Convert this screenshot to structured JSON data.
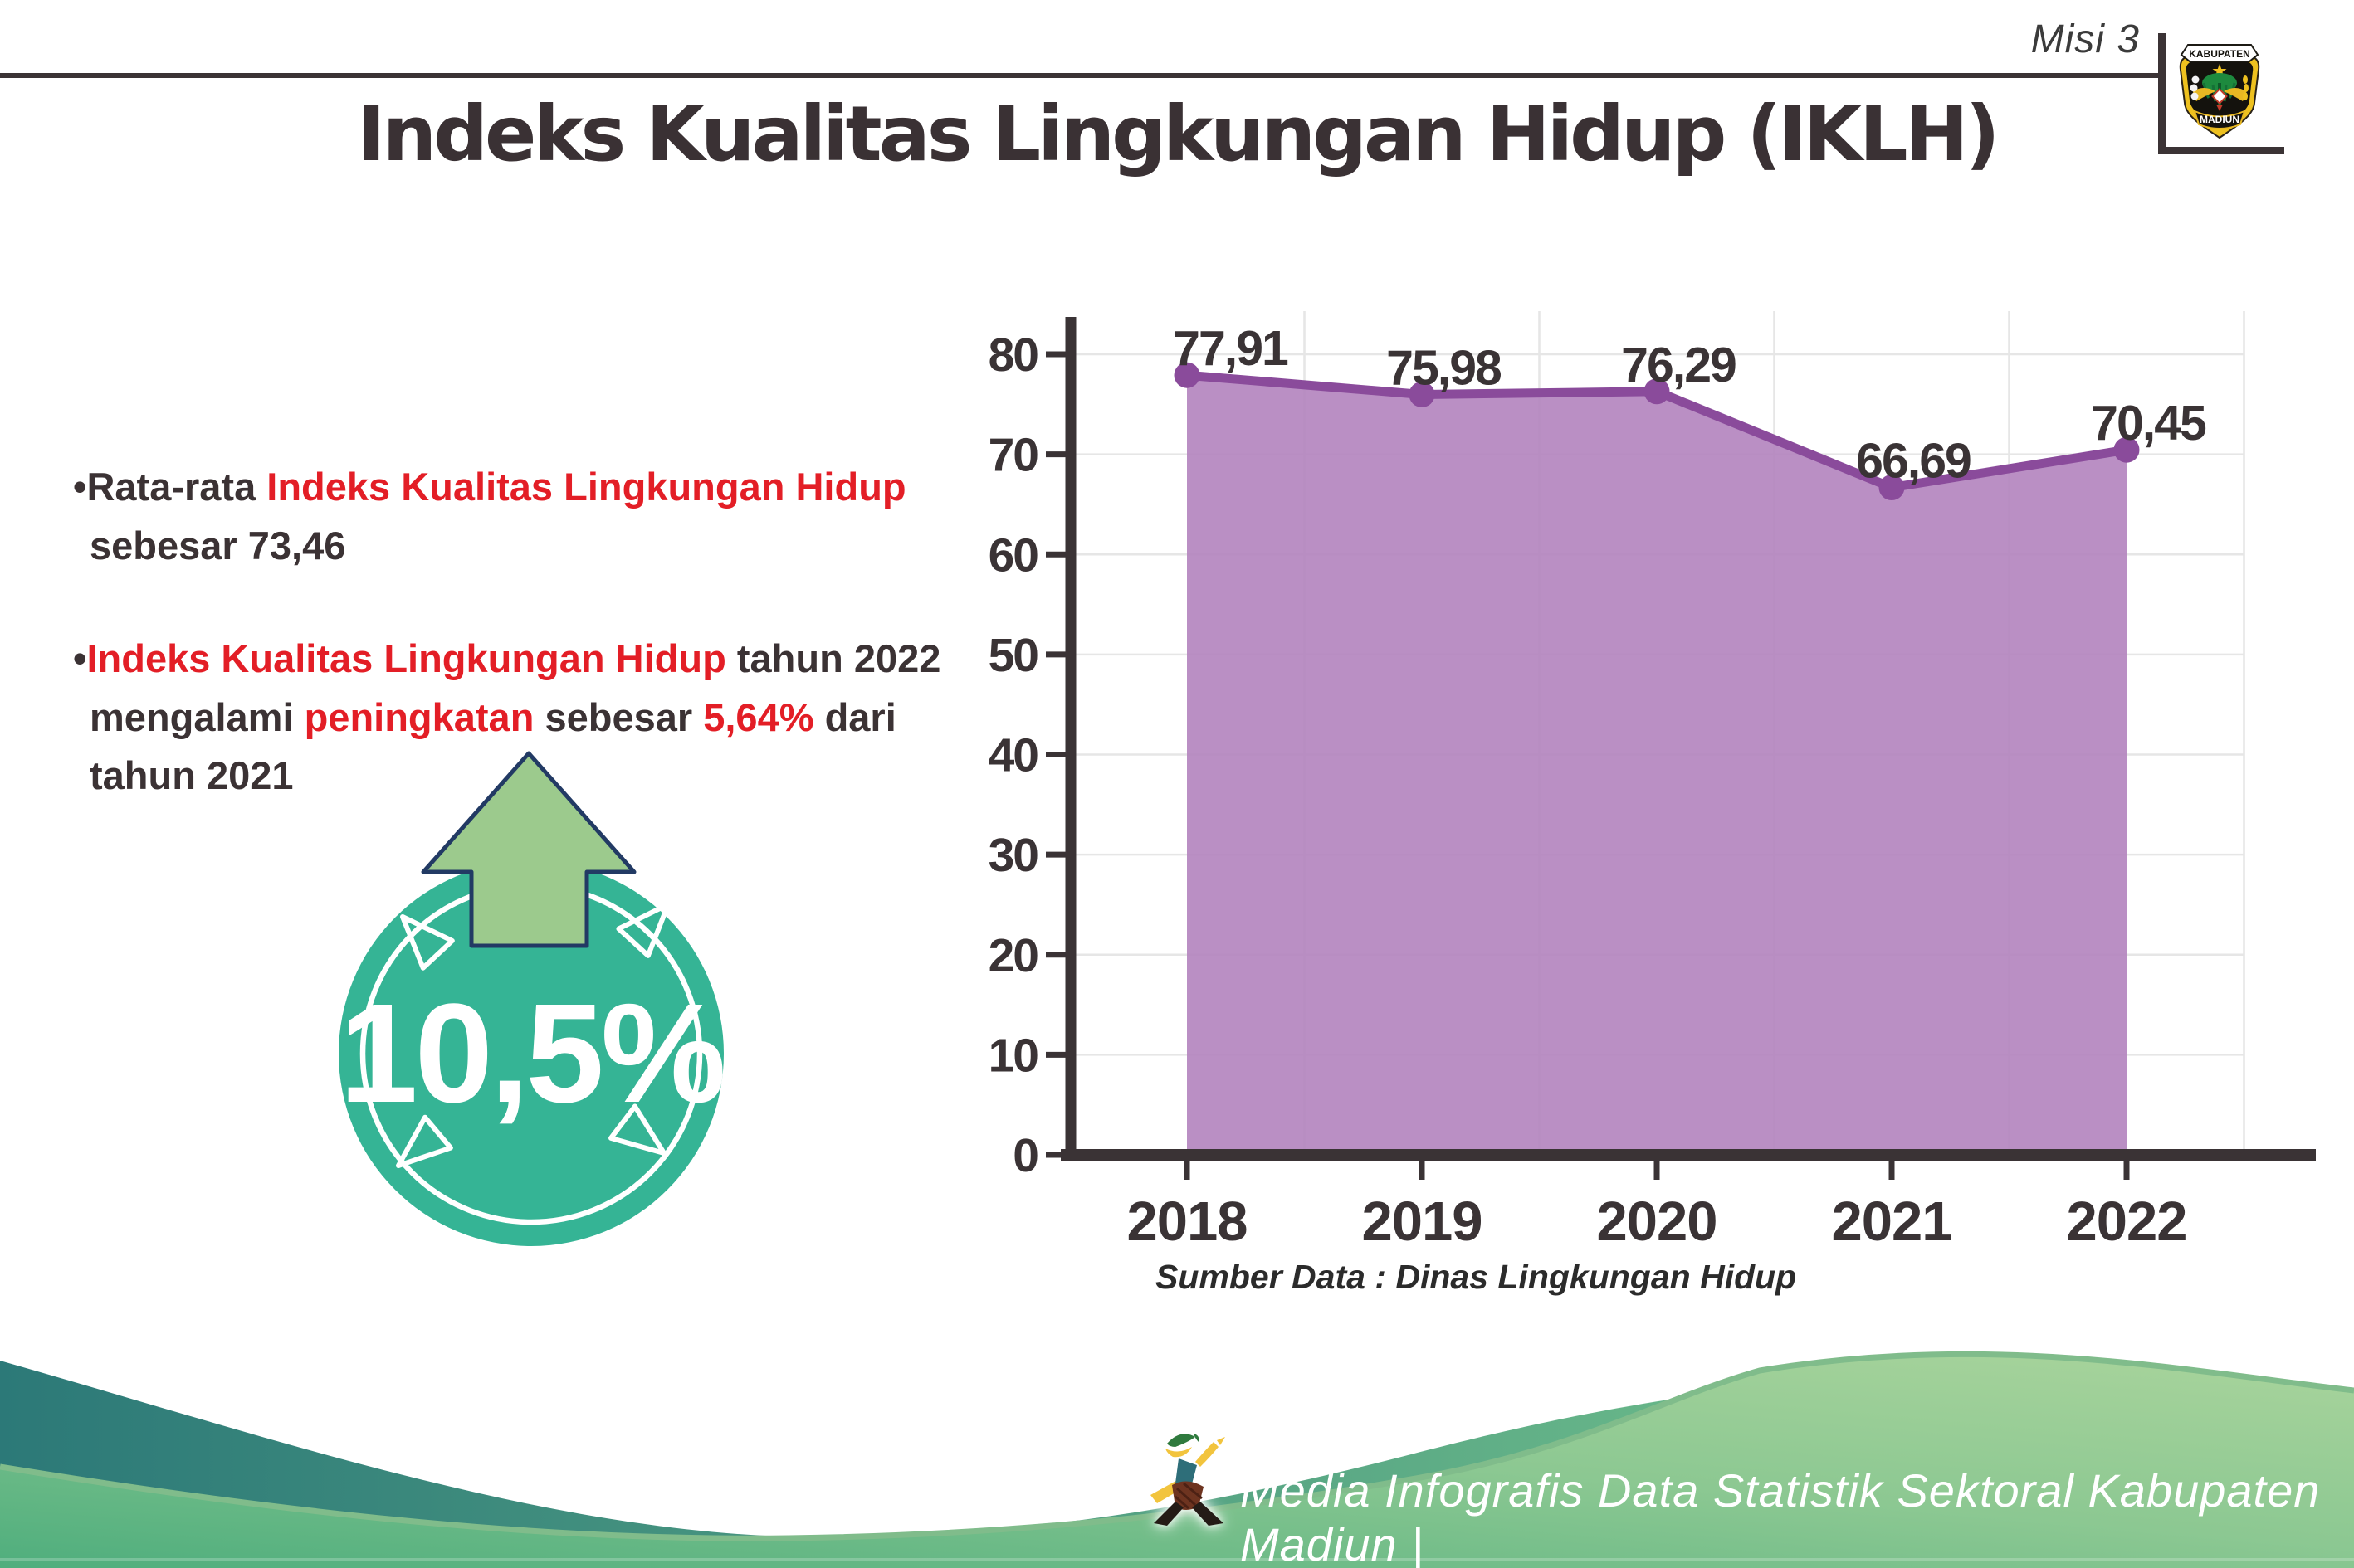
{
  "header": {
    "misi_label": "Misi 3",
    "title": "Indeks Kualitas Lingkungan Hidup (IKLH)",
    "logo": {
      "top": "KABUPATEN",
      "bottom": "MADIUN"
    }
  },
  "bullets": [
    {
      "parts": [
        {
          "t": "Rata-rata ",
          "c": "dark"
        },
        {
          "t": "Indeks Kualitas Lingkungan Hidup",
          "c": "red"
        },
        {
          "t": " sebesar 73,46",
          "c": "dark"
        }
      ]
    },
    {
      "parts": [
        {
          "t": "Indeks Kualitas Lingkungan Hidup",
          "c": "red"
        },
        {
          "t": " tahun 2022 mengalami ",
          "c": "dark"
        },
        {
          "t": "peningkatan",
          "c": "red"
        },
        {
          "t": " sebesar ",
          "c": "dark"
        },
        {
          "t": "5,64%",
          "c": "red"
        },
        {
          "t": " dari tahun 2021",
          "c": "dark"
        }
      ]
    }
  ],
  "badge": {
    "value": "10,5%"
  },
  "chart_data": {
    "type": "area",
    "title": "",
    "categories": [
      "2018",
      "2019",
      "2020",
      "2021",
      "2022"
    ],
    "values": [
      77.91,
      75.98,
      76.29,
      66.69,
      70.45
    ],
    "value_labels": [
      "77,91",
      "75,98",
      "76,29",
      "66,69",
      "70,45"
    ],
    "xlabel": "",
    "ylabel": "",
    "ylim": [
      0,
      80
    ],
    "ytick_step": 10,
    "yticks": [
      "0",
      "10",
      "20",
      "30",
      "40",
      "50",
      "60",
      "70",
      "80"
    ],
    "grid": true,
    "legend": "none",
    "source_note": "Sumber Data : Dinas Lingkungan Hidup"
  },
  "footer": {
    "credit": "Media Infografis Data Statistik Sektoral Kabupaten Madiun |"
  },
  "colors": {
    "text_dark": "#3b3234",
    "accent_red": "#e31e26",
    "line_purple": "#8a4b9b",
    "fill_purple": "#b283be",
    "gridline": "#e6e6e6",
    "axis": "#3a3335",
    "badge_teal": "#35b495",
    "arrow_green": "#9cca8d",
    "arrow_outline": "#223a64",
    "footer_teal_start": "#2c7978",
    "footer_teal_end": "#6fbe8b",
    "footer_green_start": "#4fae7d",
    "footer_green_end": "#a9d49c"
  }
}
